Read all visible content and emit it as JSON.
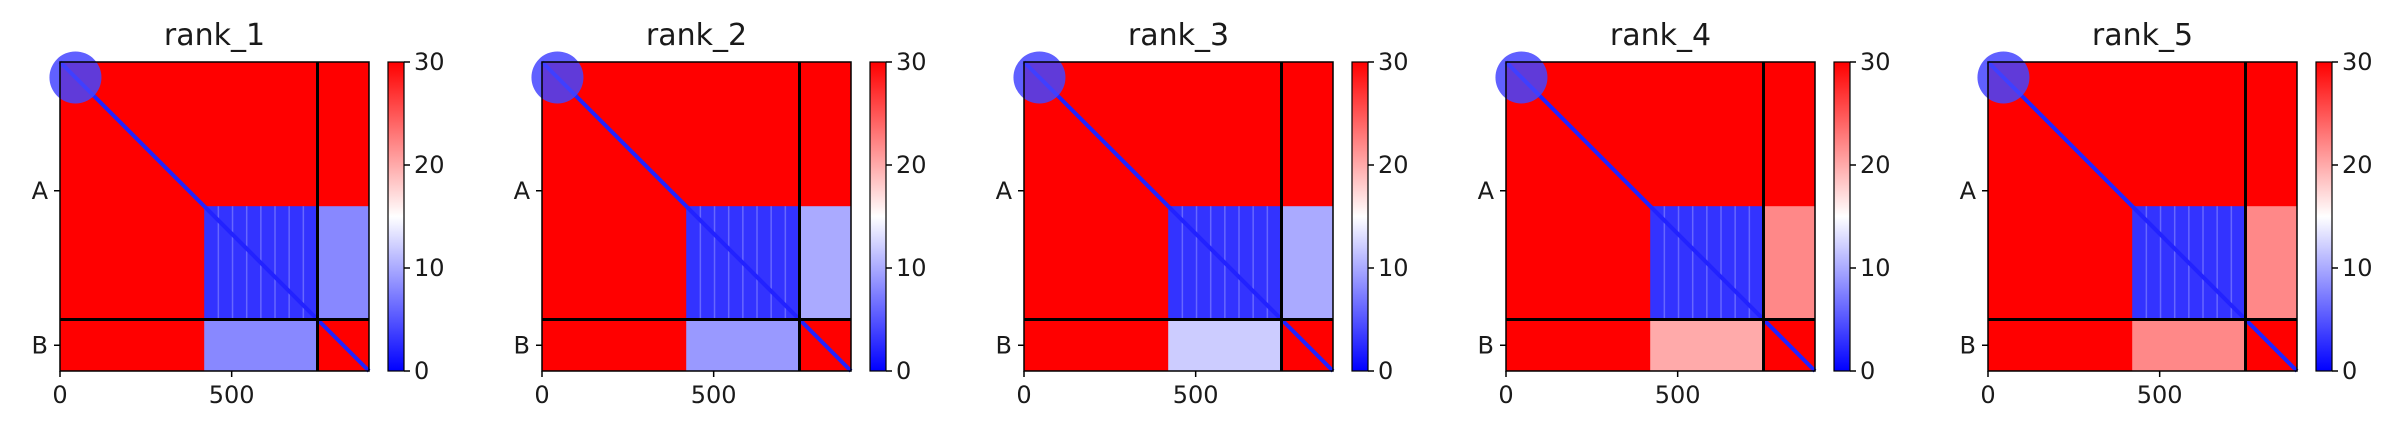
{
  "chart_data": [
    {
      "type": "heatmap",
      "title": "rank_1",
      "x_ticks": [
        0,
        500
      ],
      "y_tick_labels": [
        "A",
        "B"
      ],
      "chain_lengths": {
        "A": 750,
        "B": 150
      },
      "colorbar": {
        "min": 0,
        "max": 30,
        "ticks": [
          0,
          10,
          20,
          30
        ],
        "colors": [
          "#0000ff",
          "#ffffff",
          "#ff0000"
        ]
      },
      "regions": [
        {
          "block": "A-A",
          "x": [
            420,
            750
          ],
          "y": [
            420,
            750
          ],
          "value": 3
        },
        {
          "block": "A-B",
          "x": [
            750,
            900
          ],
          "y": [
            420,
            750
          ],
          "value": 8
        },
        {
          "block": "B-A",
          "x": [
            420,
            750
          ],
          "y": [
            750,
            900
          ],
          "value": 8
        }
      ]
    },
    {
      "type": "heatmap",
      "title": "rank_2",
      "x_ticks": [
        0,
        500
      ],
      "y_tick_labels": [
        "A",
        "B"
      ],
      "chain_lengths": {
        "A": 750,
        "B": 150
      },
      "colorbar": {
        "min": 0,
        "max": 30,
        "ticks": [
          0,
          10,
          20,
          30
        ],
        "colors": [
          "#0000ff",
          "#ffffff",
          "#ff0000"
        ]
      },
      "regions": [
        {
          "block": "A-A",
          "x": [
            420,
            750
          ],
          "y": [
            420,
            750
          ],
          "value": 3
        },
        {
          "block": "A-B",
          "x": [
            750,
            900
          ],
          "y": [
            420,
            750
          ],
          "value": 10
        },
        {
          "block": "B-A",
          "x": [
            420,
            750
          ],
          "y": [
            750,
            900
          ],
          "value": 9
        }
      ]
    },
    {
      "type": "heatmap",
      "title": "rank_3",
      "x_ticks": [
        0,
        500
      ],
      "y_tick_labels": [
        "A",
        "B"
      ],
      "chain_lengths": {
        "A": 750,
        "B": 150
      },
      "colorbar": {
        "min": 0,
        "max": 30,
        "ticks": [
          0,
          10,
          20,
          30
        ],
        "colors": [
          "#0000ff",
          "#ffffff",
          "#ff0000"
        ]
      },
      "regions": [
        {
          "block": "A-A",
          "x": [
            420,
            750
          ],
          "y": [
            420,
            750
          ],
          "value": 3
        },
        {
          "block": "A-B",
          "x": [
            750,
            900
          ],
          "y": [
            420,
            750
          ],
          "value": 10
        },
        {
          "block": "B-A",
          "x": [
            420,
            750
          ],
          "y": [
            750,
            900
          ],
          "value": 12
        }
      ]
    },
    {
      "type": "heatmap",
      "title": "rank_4",
      "x_ticks": [
        0,
        500
      ],
      "y_tick_labels": [
        "A",
        "B"
      ],
      "chain_lengths": {
        "A": 750,
        "B": 150
      },
      "colorbar": {
        "min": 0,
        "max": 30,
        "ticks": [
          0,
          10,
          20,
          30
        ],
        "colors": [
          "#0000ff",
          "#ffffff",
          "#ff0000"
        ]
      },
      "regions": [
        {
          "block": "A-A",
          "x": [
            420,
            750
          ],
          "y": [
            420,
            750
          ],
          "value": 3
        },
        {
          "block": "A-B",
          "x": [
            750,
            900
          ],
          "y": [
            420,
            750
          ],
          "value": 22
        },
        {
          "block": "B-A",
          "x": [
            420,
            750
          ],
          "y": [
            750,
            900
          ],
          "value": 20
        }
      ]
    },
    {
      "type": "heatmap",
      "title": "rank_5",
      "x_ticks": [
        0,
        500
      ],
      "y_tick_labels": [
        "A",
        "B"
      ],
      "chain_lengths": {
        "A": 750,
        "B": 150
      },
      "colorbar": {
        "min": 0,
        "max": 30,
        "ticks": [
          0,
          10,
          20,
          30
        ],
        "colors": [
          "#0000ff",
          "#ffffff",
          "#ff0000"
        ]
      },
      "regions": [
        {
          "block": "A-A",
          "x": [
            420,
            750
          ],
          "y": [
            420,
            750
          ],
          "value": 3
        },
        {
          "block": "A-B",
          "x": [
            750,
            900
          ],
          "y": [
            420,
            750
          ],
          "value": 22
        },
        {
          "block": "B-A",
          "x": [
            420,
            750
          ],
          "y": [
            750,
            900
          ],
          "value": 22
        }
      ]
    }
  ]
}
